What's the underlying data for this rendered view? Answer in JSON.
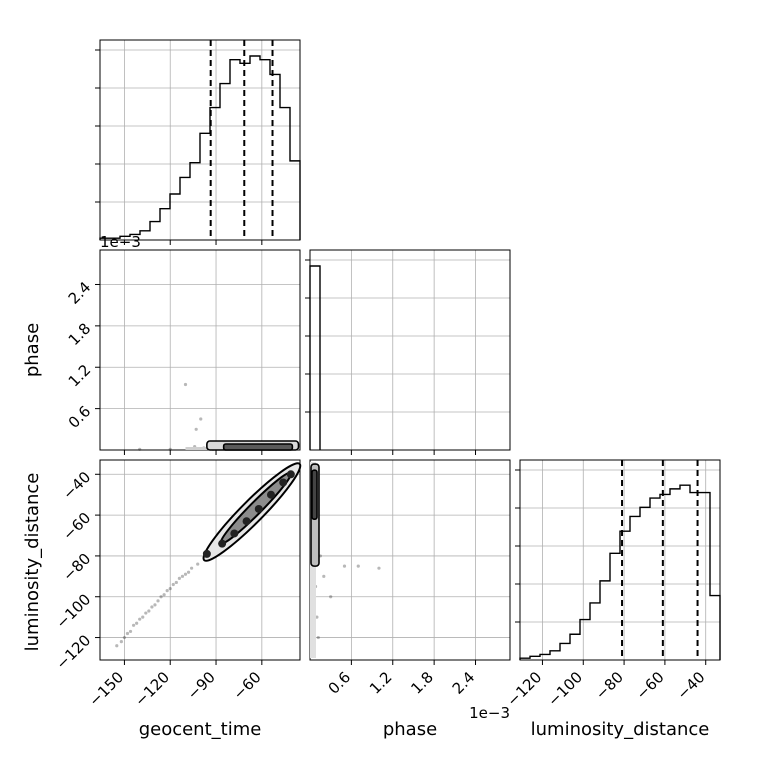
{
  "chart_data": {
    "type": "corner",
    "parameters": [
      "geocent_time",
      "phase",
      "luminosity_distance"
    ],
    "scale_offsets": {
      "phase": "1e−3"
    },
    "axis_ranges": {
      "geocent_time": [
        -166,
        -35
      ],
      "phase": [
        0,
        2.9
      ],
      "luminosity_distance": [
        -131,
        -33
      ]
    },
    "ticks": {
      "geocent_time": {
        "values": [
          -150,
          -120,
          -90,
          -60
        ],
        "labels": [
          "−150",
          "−120",
          "−90",
          "−60"
        ]
      },
      "phase": {
        "values": [
          0.6,
          1.2,
          1.8,
          2.4
        ],
        "labels": [
          "0.6",
          "1.2",
          "1.8",
          "2.4"
        ]
      },
      "luminosity_distance": {
        "values": [
          -120,
          -100,
          -80,
          -60,
          -40
        ],
        "labels": [
          "−120",
          "−100",
          "−80",
          "−60",
          "−40"
        ]
      }
    },
    "histograms": {
      "geocent_time": {
        "bins": [
          -166,
          -159.45,
          -152.9,
          -146.35,
          -139.8,
          -133.25,
          -126.7,
          -120.15,
          -113.6,
          -107.05,
          -100.5,
          -93.95,
          -87.4,
          -80.85,
          -74.3,
          -67.75,
          -61.2,
          -54.65,
          -48.1,
          -41.55,
          -35
        ],
        "counts": [
          0.01,
          0.01,
          0.02,
          0.03,
          0.05,
          0.1,
          0.17,
          0.25,
          0.34,
          0.42,
          0.58,
          0.72,
          0.85,
          0.98,
          0.96,
          1.0,
          0.98,
          0.9,
          0.72,
          0.43
        ],
        "quantiles": [
          -93.5,
          -71.5,
          -53
        ]
      },
      "phase": {
        "bins": [
          0,
          0.145
        ],
        "counts": [
          1.0
        ]
      },
      "luminosity_distance": {
        "bins": [
          -131,
          -126.1,
          -121.2,
          -116.3,
          -111.4,
          -106.5,
          -101.6,
          -96.7,
          -91.8,
          -86.9,
          -82,
          -77.1,
          -72.2,
          -67.3,
          -62.4,
          -57.5,
          -52.6,
          -47.7,
          -42.8,
          -37.9,
          -33
        ],
        "counts": [
          0.01,
          0.02,
          0.03,
          0.05,
          0.09,
          0.14,
          0.22,
          0.31,
          0.43,
          0.58,
          0.7,
          0.78,
          0.83,
          0.88,
          0.9,
          0.93,
          0.95,
          0.91,
          0.91,
          0.35
        ],
        "quantiles": [
          -81,
          -61,
          -44
        ]
      }
    },
    "scatter": {
      "geocent_time_vs_phase": {
        "x": [
          -108,
          -104,
          -98,
          -92,
          -85,
          -78,
          -70,
          -62,
          -55,
          -48,
          -42,
          -110,
          -100,
          -80,
          -65,
          -120,
          -140,
          -103
        ],
        "y": [
          0.02,
          0.05,
          0.03,
          0.01,
          0.04,
          0.02,
          0.06,
          0.03,
          0.01,
          0.02,
          0.04,
          0.95,
          0.45,
          0.08,
          0.07,
          0.01,
          0.01,
          0.3
        ]
      },
      "geocent_time_vs_luminosity_distance": {
        "x": [
          -155,
          -150,
          -146,
          -142,
          -138,
          -134,
          -130,
          -126,
          -122,
          -118,
          -114,
          -110,
          -106,
          -102,
          -152,
          -148,
          -144,
          -140,
          -136,
          -132,
          -128,
          -124,
          -120,
          -116,
          -112,
          -108
        ],
        "y": [
          -124,
          -120,
          -117,
          -113,
          -110,
          -107,
          -104,
          -100,
          -97,
          -94,
          -91,
          -89,
          -86,
          -84,
          -122,
          -118,
          -114,
          -111,
          -108,
          -105,
          -102,
          -99,
          -96,
          -93,
          -90,
          -88
        ]
      },
      "phase_vs_luminosity_distance": {
        "x": [
          0.05,
          0.1,
          0.15,
          0.2,
          0.3,
          0.5,
          0.7,
          1.0,
          0.05,
          0.1,
          0.12,
          0.08
        ],
        "y": [
          -45,
          -60,
          -80,
          -90,
          -100,
          -85,
          -85,
          -86,
          -115,
          -110,
          -120,
          -95
        ]
      }
    },
    "contour_points": {
      "geocent_time_vs_luminosity_distance": {
        "x": [
          -96,
          -86,
          -78,
          -70,
          -62,
          -54,
          -46,
          -41
        ],
        "y": [
          -79,
          -74,
          -69,
          -63,
          -57,
          -50,
          -44,
          -40
        ]
      }
    },
    "grid": true,
    "legend": "none"
  }
}
